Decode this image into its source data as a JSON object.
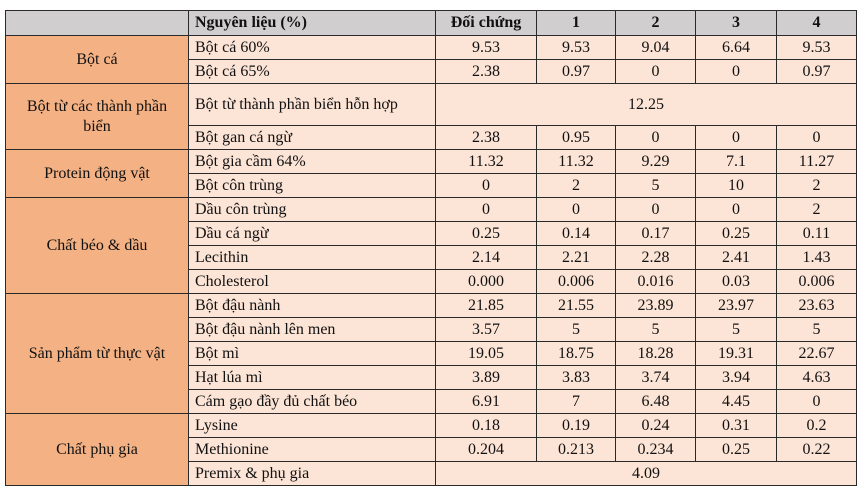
{
  "colors": {
    "header_bg": "#d0cece",
    "group_bg": "#f4b183",
    "cell_bg": "#fce4d6"
  },
  "header": {
    "group": "",
    "ingredient": "Nguyên liệu (%)",
    "columns": [
      "Đối chứng",
      "1",
      "2",
      "3",
      "4"
    ]
  },
  "groups": [
    {
      "name": "Bột cá",
      "rows": [
        {
          "ingredient": "Bột cá 60%",
          "values": [
            "9.53",
            "9.53",
            "9.04",
            "6.64",
            "9.53"
          ]
        },
        {
          "ingredient": "Bột cá 65%",
          "values": [
            "2.38",
            "0.97",
            "0",
            "0",
            "0.97"
          ]
        }
      ]
    },
    {
      "name": "Bột từ các thành phần biển",
      "rows": [
        {
          "ingredient": "Bột từ thành phần biển hỗn hợp",
          "merged_value": "12.25"
        },
        {
          "ingredient": "Bột gan cá ngừ",
          "values": [
            "2.38",
            "0.95",
            "0",
            "0",
            "0"
          ]
        }
      ]
    },
    {
      "name": "Protein động vật",
      "rows": [
        {
          "ingredient": "Bột gia cầm 64%",
          "values": [
            "11.32",
            "11.32",
            "9.29",
            "7.1",
            "11.27"
          ]
        },
        {
          "ingredient": "Bột côn trùng",
          "values": [
            "0",
            "2",
            "5",
            "10",
            "2"
          ]
        }
      ]
    },
    {
      "name": "Chất béo & dầu",
      "rows": [
        {
          "ingredient": "Dầu côn trùng",
          "values": [
            "0",
            "0",
            "0",
            "0",
            "2"
          ]
        },
        {
          "ingredient": "Dầu cá ngừ",
          "values": [
            "0.25",
            "0.14",
            "0.17",
            "0.25",
            "0.11"
          ]
        },
        {
          "ingredient": "Lecithin",
          "values": [
            "2.14",
            "2.21",
            "2.28",
            "2.41",
            "1.43"
          ]
        },
        {
          "ingredient": "Cholesterol",
          "values": [
            "0.000",
            "0.006",
            "0.016",
            "0.03",
            "0.006"
          ]
        }
      ]
    },
    {
      "name": "Sản phẩm từ thực vật",
      "rows": [
        {
          "ingredient": "Bột đậu nành",
          "values": [
            "21.85",
            "21.55",
            "23.89",
            "23.97",
            "23.63"
          ]
        },
        {
          "ingredient": "Bột đậu nành lên men",
          "values": [
            "3.57",
            "5",
            "5",
            "5",
            "5"
          ]
        },
        {
          "ingredient": "Bột mì",
          "values": [
            "19.05",
            "18.75",
            "18.28",
            "19.31",
            "22.67"
          ]
        },
        {
          "ingredient": "Hạt lúa mì",
          "values": [
            "3.89",
            "3.83",
            "3.74",
            "3.94",
            "4.63"
          ]
        },
        {
          "ingredient": "Cám gạo đầy đủ chất béo",
          "values": [
            "6.91",
            "7",
            "6.48",
            "4.45",
            "0"
          ]
        }
      ]
    },
    {
      "name": "Chất phụ gia",
      "rows": [
        {
          "ingredient": "Lysine",
          "values": [
            "0.18",
            "0.19",
            "0.24",
            "0.31",
            "0.2"
          ]
        },
        {
          "ingredient": "Methionine",
          "values": [
            "0.204",
            "0.213",
            "0.234",
            "0.25",
            "0.22"
          ]
        },
        {
          "ingredient": "Premix & phụ gia",
          "merged_value": "4.09"
        }
      ]
    }
  ]
}
